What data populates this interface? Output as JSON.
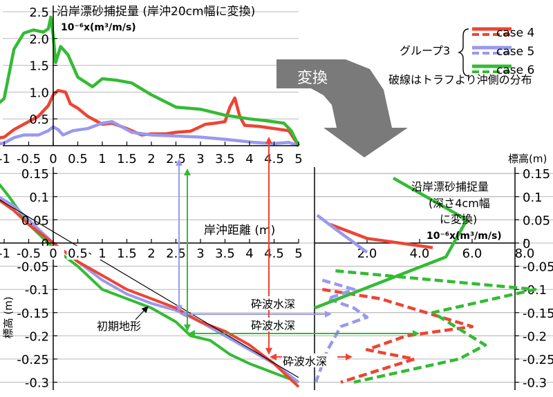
{
  "chart_data": [
    {
      "id": "top",
      "type": "line",
      "title": "沿岸漂砂捕捉量 (岸沖20cm幅に変換)",
      "unit_text": "10⁻⁶x(m³/m/s)",
      "ylim": [
        0,
        2.5
      ],
      "xlim": [
        -1.2,
        5.1
      ],
      "yticks": [
        {
          "v": 0.5,
          "label": "0.5"
        },
        {
          "v": 1.0,
          "label": "1.0"
        },
        {
          "v": 1.5,
          "label": "1.5"
        },
        {
          "v": 2.0,
          "label": "2.0"
        },
        {
          "v": 2.5,
          "label": "2.5"
        }
      ],
      "xticks": [
        {
          "v": -1,
          "label": "-1"
        },
        {
          "v": -0.5,
          "label": "-0.5"
        },
        {
          "v": 0,
          "label": "0"
        },
        {
          "v": 0.5,
          "label": "0.5"
        },
        {
          "v": 1,
          "label": "1"
        },
        {
          "v": 1.5,
          "label": "1.5"
        },
        {
          "v": 2,
          "label": "2"
        },
        {
          "v": 2.5,
          "label": "2.5"
        },
        {
          "v": 3,
          "label": "3"
        },
        {
          "v": 3.5,
          "label": "3.5"
        },
        {
          "v": 4,
          "label": "4"
        },
        {
          "v": 4.5,
          "label": "4.5"
        },
        {
          "v": 5,
          "label": "5"
        }
      ],
      "series": [
        {
          "name": "case 4",
          "color": "#ee4433",
          "points": [
            [
              -1.2,
              0.13
            ],
            [
              -1.0,
              0.16
            ],
            [
              -0.8,
              0.3
            ],
            [
              -0.5,
              0.45
            ],
            [
              -0.3,
              0.55
            ],
            [
              -0.1,
              0.75
            ],
            [
              0.0,
              0.95
            ],
            [
              0.1,
              1.03
            ],
            [
              0.25,
              1.0
            ],
            [
              0.35,
              0.78
            ],
            [
              0.5,
              0.7
            ],
            [
              0.7,
              0.55
            ],
            [
              1.0,
              0.4
            ],
            [
              1.2,
              0.42
            ],
            [
              1.5,
              0.32
            ],
            [
              1.8,
              0.2
            ],
            [
              2.0,
              0.22
            ],
            [
              2.3,
              0.22
            ],
            [
              2.5,
              0.25
            ],
            [
              2.8,
              0.27
            ],
            [
              3.1,
              0.4
            ],
            [
              3.3,
              0.42
            ],
            [
              3.5,
              0.45
            ],
            [
              3.6,
              0.72
            ],
            [
              3.7,
              0.89
            ],
            [
              3.8,
              0.55
            ],
            [
              3.9,
              0.38
            ],
            [
              4.2,
              0.36
            ],
            [
              4.5,
              0.32
            ],
            [
              4.8,
              0.28
            ],
            [
              5.0,
              0.0
            ]
          ]
        },
        {
          "name": "case 5",
          "color": "#9999ee",
          "points": [
            [
              -1.2,
              0.02
            ],
            [
              -1.0,
              0.05
            ],
            [
              -0.8,
              0.15
            ],
            [
              -0.6,
              0.2
            ],
            [
              -0.3,
              0.2
            ],
            [
              -0.1,
              0.28
            ],
            [
              0.0,
              0.35
            ],
            [
              0.1,
              0.3
            ],
            [
              0.2,
              0.2
            ],
            [
              0.4,
              0.28
            ],
            [
              0.7,
              0.32
            ],
            [
              1.0,
              0.42
            ],
            [
              1.2,
              0.45
            ],
            [
              1.4,
              0.35
            ],
            [
              1.6,
              0.25
            ],
            [
              2.0,
              0.2
            ],
            [
              2.5,
              0.18
            ],
            [
              3.0,
              0.16
            ],
            [
              3.5,
              0.12
            ],
            [
              3.7,
              0.1
            ],
            [
              4.1,
              0.06
            ],
            [
              4.5,
              0.04
            ],
            [
              4.8,
              0.06
            ],
            [
              5.0,
              0.0
            ]
          ]
        },
        {
          "name": "case 6",
          "color": "#33bb33",
          "points": [
            [
              -1.2,
              0.72
            ],
            [
              -1.0,
              0.88
            ],
            [
              -0.8,
              1.8
            ],
            [
              -0.6,
              2.1
            ],
            [
              -0.4,
              2.16
            ],
            [
              -0.2,
              2.12
            ],
            [
              -0.1,
              2.18
            ],
            [
              -0.05,
              2.4
            ],
            [
              0.0,
              2.05
            ],
            [
              0.05,
              1.55
            ],
            [
              0.15,
              1.85
            ],
            [
              0.3,
              1.7
            ],
            [
              0.5,
              1.28
            ],
            [
              0.8,
              1.1
            ],
            [
              1.0,
              1.25
            ],
            [
              1.3,
              1.22
            ],
            [
              1.6,
              1.17
            ],
            [
              2.0,
              0.95
            ],
            [
              2.5,
              0.72
            ],
            [
              3.0,
              0.68
            ],
            [
              3.5,
              0.57
            ],
            [
              4.0,
              0.5
            ],
            [
              4.3,
              0.47
            ],
            [
              4.7,
              0.42
            ],
            [
              4.85,
              0.28
            ],
            [
              5.0,
              0.0
            ]
          ]
        }
      ]
    },
    {
      "id": "profile",
      "type": "line",
      "xlabel": "岸沖距離 (m)",
      "ylabel": "標高 (m)",
      "xlim": [
        -1.2,
        5.1
      ],
      "ylim": [
        -0.31,
        0.165
      ],
      "yticks": [
        {
          "v": 0.15,
          "label": "0.15"
        },
        {
          "v": 0.1,
          "label": "0.1"
        },
        {
          "v": 0.05,
          "label": "0.05"
        },
        {
          "v": 0.0,
          "label": "0"
        },
        {
          "v": -0.05,
          "label": "-0.05"
        },
        {
          "v": -0.1,
          "label": "-0.1"
        },
        {
          "v": -0.15,
          "label": "-0.15"
        },
        {
          "v": -0.2,
          "label": "-0.2"
        },
        {
          "v": -0.25,
          "label": "-0.25"
        },
        {
          "v": -0.3,
          "label": "-0.3"
        }
      ],
      "series": [
        {
          "name": "初期地形",
          "color": "#000000",
          "points": [
            [
              -1.2,
              0.1
            ],
            [
              5.0,
              -0.29
            ]
          ]
        },
        {
          "name": "case 4",
          "color": "#ee4433",
          "points": [
            [
              -1.2,
              0.1
            ],
            [
              -0.8,
              0.07
            ],
            [
              -0.5,
              0.04
            ],
            [
              0.0,
              0.0
            ],
            [
              0.5,
              -0.04
            ],
            [
              1.0,
              -0.07
            ],
            [
              1.5,
              -0.1
            ],
            [
              2.0,
              -0.12
            ],
            [
              2.5,
              -0.14
            ],
            [
              3.0,
              -0.17
            ],
            [
              3.5,
              -0.19
            ],
            [
              4.0,
              -0.22
            ],
            [
              4.5,
              -0.26
            ],
            [
              5.0,
              -0.31
            ]
          ]
        },
        {
          "name": "case 5",
          "color": "#9999ee",
          "points": [
            [
              -1.2,
              0.105
            ],
            [
              -0.8,
              0.08
            ],
            [
              -0.5,
              0.05
            ],
            [
              0.0,
              0.0
            ],
            [
              0.5,
              -0.04
            ],
            [
              1.0,
              -0.08
            ],
            [
              1.5,
              -0.11
            ],
            [
              2.0,
              -0.13
            ],
            [
              2.5,
              -0.145
            ],
            [
              3.0,
              -0.17
            ],
            [
              3.5,
              -0.2
            ],
            [
              4.0,
              -0.23
            ],
            [
              4.5,
              -0.26
            ],
            [
              5.0,
              -0.3
            ]
          ]
        },
        {
          "name": "case 6",
          "color": "#33bb33",
          "points": [
            [
              -1.2,
              0.14
            ],
            [
              -0.9,
              0.1
            ],
            [
              -0.5,
              0.04
            ],
            [
              0.0,
              -0.01
            ],
            [
              0.5,
              -0.05
            ],
            [
              1.0,
              -0.1
            ],
            [
              1.5,
              -0.12
            ],
            [
              2.0,
              -0.14
            ],
            [
              2.5,
              -0.17
            ],
            [
              2.8,
              -0.2
            ],
            [
              3.2,
              -0.21
            ],
            [
              3.6,
              -0.24
            ],
            [
              4.0,
              -0.26
            ],
            [
              4.5,
              -0.28
            ],
            [
              5.0,
              -0.3
            ]
          ]
        }
      ]
    },
    {
      "id": "right",
      "type": "line",
      "title_lines": [
        "沿岸漂砂捕捉量",
        "(深さ4cm幅",
        "に変換)"
      ],
      "unit_text": "10⁻⁶x(m³/m/s)",
      "ylabel_top": "標高(m)",
      "xlim": [
        0,
        8.6
      ],
      "ylim": [
        -0.31,
        0.165
      ],
      "xticks": [
        {
          "v": 2,
          "label": "2.0"
        },
        {
          "v": 4,
          "label": "4.0"
        },
        {
          "v": 6,
          "label": "6.0"
        },
        {
          "v": 8,
          "label": "8.0"
        }
      ],
      "series": [
        {
          "name": "case 4",
          "color": "#ee4433",
          "solid": [
            [
              0.6,
              0.04
            ],
            [
              2.0,
              0.01
            ],
            [
              4.5,
              -0.01
            ]
          ],
          "dashed": [
            [
              0.3,
              -0.1
            ],
            [
              2.5,
              -0.12
            ],
            [
              6.0,
              -0.18
            ],
            [
              3.5,
              -0.2
            ],
            [
              2.0,
              -0.23
            ],
            [
              3.8,
              -0.25
            ],
            [
              1.0,
              -0.3
            ]
          ]
        },
        {
          "name": "case 5",
          "color": "#9999ee",
          "solid": [
            [
              0.1,
              0.06
            ],
            [
              0.8,
              0.03
            ],
            [
              2.0,
              -0.02
            ]
          ],
          "dashed": [
            [
              0.3,
              -0.08
            ],
            [
              1.5,
              -0.1
            ],
            [
              0.5,
              -0.12
            ],
            [
              1.5,
              -0.14
            ],
            [
              2.0,
              -0.16
            ],
            [
              1.0,
              -0.18
            ],
            [
              0.5,
              -0.23
            ],
            [
              0.05,
              -0.3
            ]
          ]
        },
        {
          "name": "case 6",
          "color": "#33bb33",
          "solid": [
            [
              3.0,
              0.14
            ],
            [
              5.8,
              0.05
            ],
            [
              5.0,
              -0.03
            ],
            [
              0.0,
              -0.14
            ]
          ],
          "dashed": [
            [
              0.8,
              -0.06
            ],
            [
              8.4,
              -0.1
            ],
            [
              4.5,
              -0.15
            ],
            [
              6.5,
              -0.22
            ],
            [
              5.5,
              -0.25
            ],
            [
              1.5,
              -0.3
            ]
          ]
        }
      ]
    }
  ],
  "legend": {
    "group_label": "グループ3",
    "items": [
      {
        "label": "case 4",
        "color": "#ee4433"
      },
      {
        "label": "case 5",
        "color": "#9999ee"
      },
      {
        "label": "case 6",
        "color": "#33bb33"
      }
    ],
    "note": "破線はトラフより沖側の分布"
  },
  "annotations": {
    "henkan": "変換",
    "initial_terrain": "初期地形",
    "breaking_depth_1": "砕波水深",
    "breaking_depth_2": "砕波水深",
    "breaking_depth_3": "砕波水深"
  }
}
